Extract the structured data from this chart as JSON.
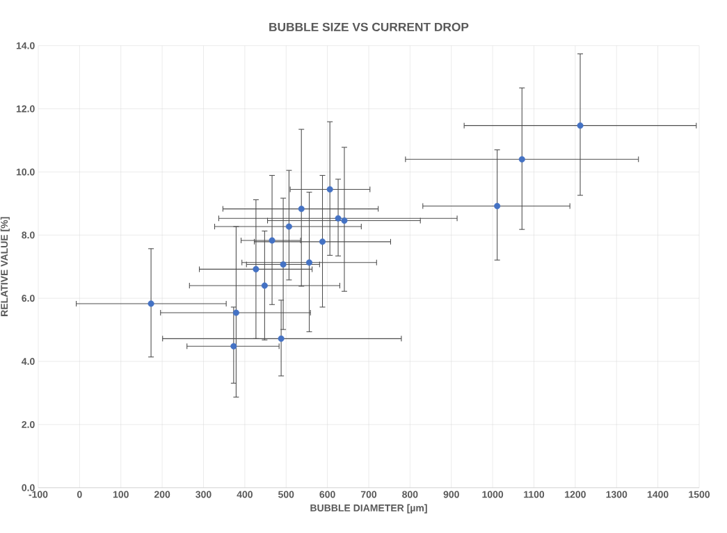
{
  "chart_data": {
    "type": "scatter",
    "title": "BUBBLE SIZE VS CURRENT DROP",
    "xlabel": "BUBBLE DIAMETER [µm]",
    "ylabel": "RELATIVE VALUE [%]",
    "color": "#4472c4",
    "grid": true,
    "xlim": [
      -100,
      1500
    ],
    "xticks": [
      -100,
      0,
      100,
      200,
      300,
      400,
      500,
      600,
      700,
      800,
      900,
      1000,
      1100,
      1200,
      1300,
      1400,
      1500
    ],
    "ylim": [
      0,
      14
    ],
    "yticks": [
      {
        "value": 0,
        "label": "0.0"
      },
      {
        "value": 2,
        "label": "2.0"
      },
      {
        "value": 4,
        "label": "4.0"
      },
      {
        "value": 6,
        "label": "6.0"
      },
      {
        "value": 8,
        "label": "8.0"
      },
      {
        "value": 10,
        "label": "10.0"
      },
      {
        "value": 12,
        "label": "12.0"
      },
      {
        "value": 14,
        "label": "14.0"
      }
    ],
    "x": [
      173,
      379,
      373,
      488,
      448,
      427,
      493,
      556,
      466,
      588,
      507,
      537,
      606,
      626,
      641,
      1011,
      1071,
      1212
    ],
    "values": [
      5.83,
      5.54,
      4.48,
      4.72,
      6.4,
      6.92,
      7.07,
      7.13,
      7.83,
      7.79,
      8.27,
      8.83,
      9.45,
      8.53,
      8.46,
      8.92,
      10.4,
      11.47
    ],
    "errors": [
      [
        4.14,
        7.57
      ],
      [
        2.87,
        8.27
      ],
      [
        3.31,
        5.72
      ],
      [
        3.54,
        5.94
      ],
      [
        4.68,
        8.13
      ],
      [
        4.72,
        9.12
      ],
      [
        5.01,
        9.17
      ],
      [
        4.94,
        9.36
      ],
      [
        5.8,
        9.89
      ],
      [
        5.72,
        9.89
      ],
      [
        6.58,
        10.05
      ],
      [
        6.38,
        11.35
      ],
      [
        7.36,
        11.59
      ],
      [
        7.34,
        9.77
      ],
      [
        6.22,
        10.78
      ],
      [
        7.21,
        10.7
      ],
      [
        8.18,
        12.66
      ],
      [
        9.26,
        13.74
      ]
    ],
    "xerrors": [
      [
        -8,
        355
      ],
      [
        196,
        559
      ],
      [
        260,
        483
      ],
      [
        201,
        779
      ],
      [
        266,
        630
      ],
      [
        290,
        563
      ],
      [
        404,
        581
      ],
      [
        393,
        719
      ],
      [
        391,
        535
      ],
      [
        423,
        753
      ],
      [
        327,
        682
      ],
      [
        347,
        723
      ],
      [
        510,
        703
      ],
      [
        337,
        914
      ],
      [
        455,
        825
      ],
      [
        831,
        1187
      ],
      [
        789,
        1353
      ],
      [
        931,
        1493
      ]
    ]
  }
}
